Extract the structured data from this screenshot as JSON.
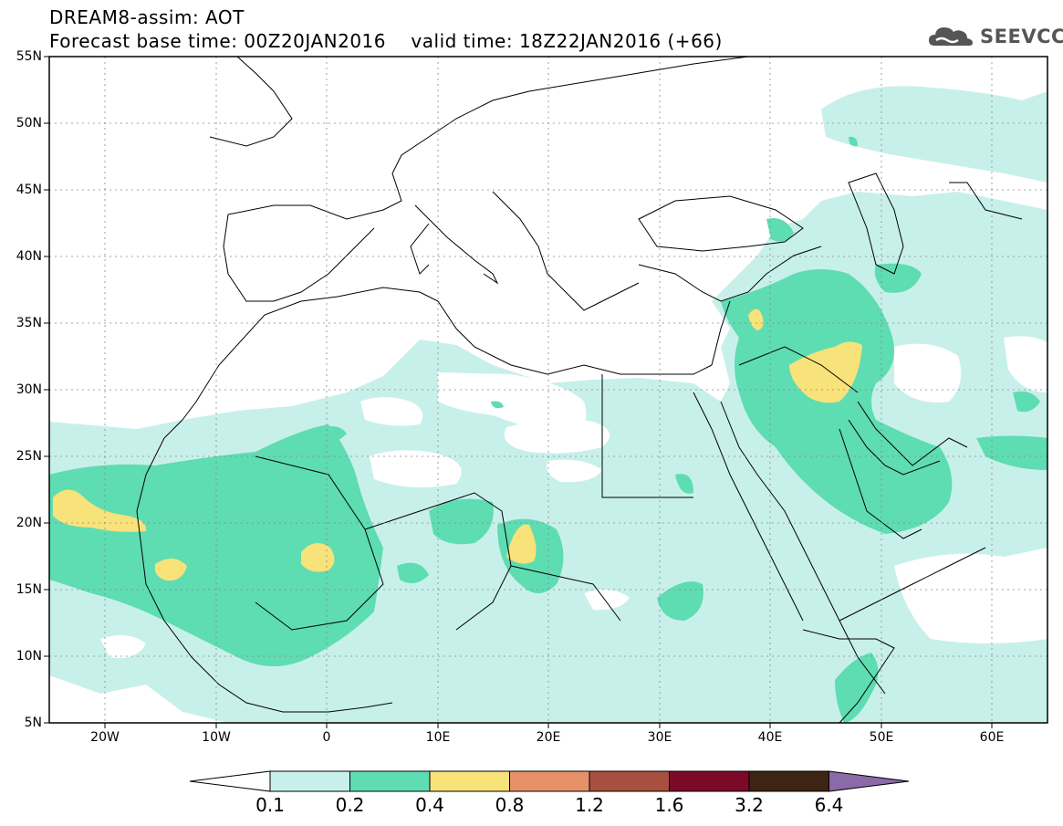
{
  "header": {
    "line1": "DREAM8-assim: AOT",
    "line2": "Forecast base time: 00Z20JAN2016    valid time: 18Z22JAN2016 (+66)"
  },
  "logo": {
    "text": "SEEVCCC",
    "icon": "cloud-icon"
  },
  "map": {
    "lat_labels": [
      "55N",
      "50N",
      "45N",
      "40N",
      "35N",
      "30N",
      "25N",
      "20N",
      "15N",
      "10N",
      "5N"
    ],
    "lon_labels": [
      "20W",
      "10W",
      "0",
      "10E",
      "20E",
      "30E",
      "40E",
      "50E",
      "60E"
    ],
    "grid": true
  },
  "colorbar": {
    "labels": [
      "0.1",
      "0.2",
      "0.4",
      "0.8",
      "1.2",
      "1.6",
      "3.2",
      "6.4"
    ],
    "colors": [
      "#ffffff",
      "#c8f0ea",
      "#5edcb2",
      "#f8e27a",
      "#e6906a",
      "#a85040",
      "#7a0a28",
      "#3e2412",
      "#8a6aa8"
    ]
  },
  "colors": {
    "land": "#ffffff",
    "aot_01": "#c8f0ea",
    "aot_02": "#5edcb2",
    "aot_04": "#f8e27a",
    "border": "#000000"
  }
}
